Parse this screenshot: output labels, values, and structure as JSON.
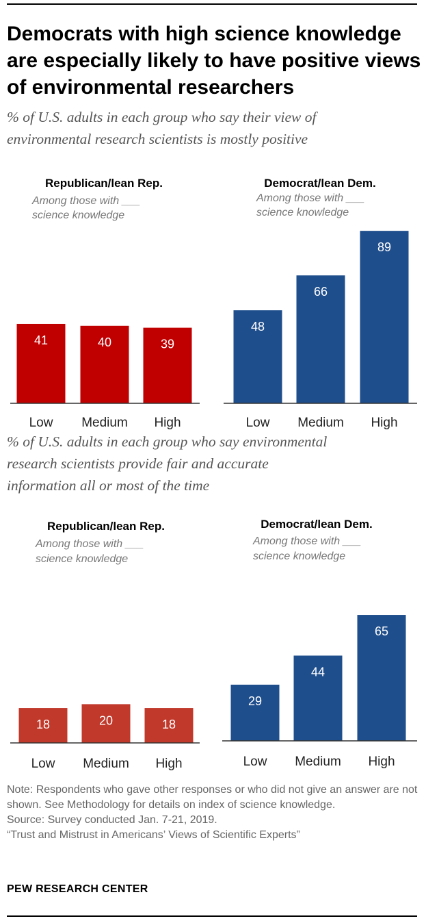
{
  "title": "Democrats with high science knowledge are especially likely to have positive views of environmental researchers",
  "colors": {
    "rep_top": "#c00000",
    "rep_bottom": "#c0392b",
    "dem": "#1f4e8c",
    "axis": "#333333"
  },
  "notes": {
    "note": "Note: Respondents who gave other responses or who did not give an answer are not shown. See Methodology for details on index of science knowledge.",
    "source": "Source: Survey conducted Jan. 7-21, 2019.",
    "report": "“Trust and Mistrust in Americans’ Views of Scientific Experts”",
    "brand": "PEW RESEARCH CENTER"
  },
  "chart_data": [
    {
      "type": "bar",
      "title": "% of U.S. adults in each group who say their view of environmental research scientists is mostly positive",
      "subtitle_lines": [
        "% of U.S. adults in each group who say their view of",
        "environmental research scientists is mostly positive"
      ],
      "ylim": [
        0,
        100
      ],
      "panels": [
        {
          "title": "Republican/lean Rep.",
          "subtitle_lines": [
            "Among those with ___",
            "science knowledge"
          ],
          "categories": [
            "Low",
            "Medium",
            "High"
          ],
          "values": [
            41,
            40,
            39
          ],
          "color": "#c00000"
        },
        {
          "title": "Democrat/lean Dem.",
          "subtitle_lines": [
            "Among those with ___",
            "science knowledge"
          ],
          "categories": [
            "Low",
            "Medium",
            "High"
          ],
          "values": [
            48,
            66,
            89
          ],
          "color": "#1f4e8c"
        }
      ]
    },
    {
      "type": "bar",
      "title": "% of U.S. adults in each group who say environmental research scientists provide fair and accurate information all or most of the time",
      "subtitle_lines": [
        "% of U.S. adults in each group who say environmental",
        "research scientists provide fair and accurate",
        "information all or most of the time"
      ],
      "ylim": [
        0,
        100
      ],
      "panels": [
        {
          "title": "Republican/lean Rep.",
          "subtitle_lines": [
            "Among those with ___",
            "science knowledge"
          ],
          "categories": [
            "Low",
            "Medium",
            "High"
          ],
          "values": [
            18,
            20,
            18
          ],
          "color": "#c0392b"
        },
        {
          "title": "Democrat/lean Dem.",
          "subtitle_lines": [
            "Among those with ___",
            "science knowledge"
          ],
          "categories": [
            "Low",
            "Medium",
            "High"
          ],
          "values": [
            29,
            44,
            65
          ],
          "color": "#1f4e8c"
        }
      ]
    }
  ]
}
